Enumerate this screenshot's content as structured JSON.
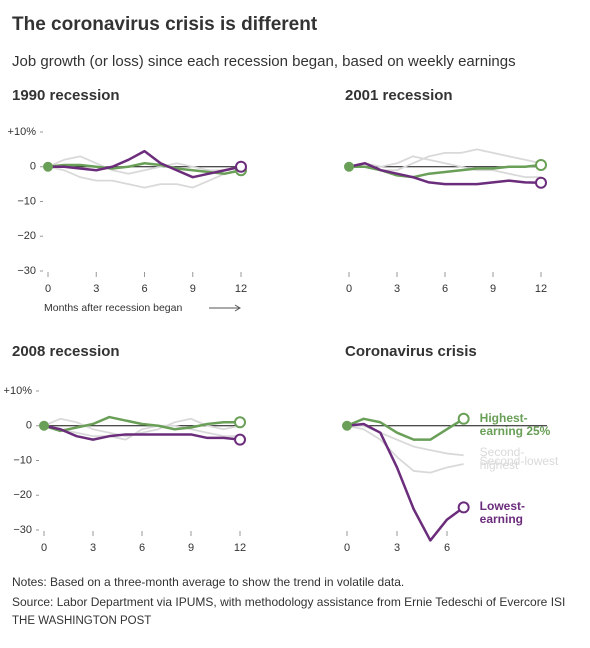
{
  "title": "The coronavirus crisis is different",
  "subtitle": "Job growth (or loss) since each recession began, based on weekly earnings",
  "notes": [
    "Notes: Based on a three-month average to show the trend in volatile data.",
    "Source: Labor Department via IPUMS, with methodology assistance from Ernie Tedeschi of Evercore ISI",
    "THE WASHINGTON POST"
  ],
  "chart_data": [
    {
      "type": "line",
      "title": "1990 recession",
      "xlabel": "Months after recession began",
      "x": [
        0,
        1,
        2,
        3,
        4,
        5,
        6,
        7,
        8,
        9,
        10,
        11,
        12
      ],
      "xlim": [
        0,
        12
      ],
      "xticks": [
        0,
        3,
        6,
        9,
        12
      ],
      "ylim": [
        -30,
        10
      ],
      "yticks": [
        {
          "value": 10,
          "label": "+10%"
        },
        0,
        {
          "value": -10,
          "label": "−10"
        },
        {
          "value": -20,
          "label": "−20"
        },
        {
          "value": -30,
          "label": "−30"
        }
      ],
      "series": [
        {
          "color": "#6a9f58",
          "values": [
            0,
            0.5,
            0.5,
            0,
            -0.5,
            0,
            1,
            0.5,
            -0.5,
            -1,
            -1.5,
            -2,
            -1
          ]
        },
        {
          "color": "#d9d9d9",
          "values": [
            0,
            2,
            3,
            1,
            -1,
            -2,
            -1,
            0,
            1,
            0,
            -1,
            -1,
            0
          ]
        },
        {
          "color": "#d9d9d9",
          "values": [
            0,
            -1,
            -3,
            -4,
            -4,
            -5,
            -6,
            -5,
            -5,
            -6,
            -4,
            -2,
            -1
          ]
        },
        {
          "color": "#6b2d7b",
          "values": [
            0,
            0,
            -0.5,
            -1,
            0,
            2,
            4.5,
            1,
            -1,
            -3,
            -2,
            -1,
            0
          ]
        }
      ]
    },
    {
      "type": "line",
      "title": "2001 recession",
      "x": [
        0,
        1,
        2,
        3,
        4,
        5,
        6,
        7,
        8,
        9,
        10,
        11,
        12
      ],
      "xlim": [
        0,
        12
      ],
      "xticks": [
        0,
        3,
        6,
        9,
        12
      ],
      "ylim": [
        -30,
        10
      ],
      "series": [
        {
          "color": "#6a9f58",
          "values": [
            0,
            0,
            -1,
            -2.5,
            -3,
            -2,
            -1.5,
            -1,
            -0.5,
            -0.5,
            0,
            0,
            0.5
          ]
        },
        {
          "color": "#d9d9d9",
          "values": [
            0,
            0,
            -1,
            -1,
            1,
            3,
            4,
            4,
            5,
            4,
            3,
            2,
            1
          ]
        },
        {
          "color": "#d9d9d9",
          "values": [
            0,
            1,
            0,
            1,
            3,
            2,
            1,
            0,
            -1,
            -1,
            -2,
            -3,
            -3
          ]
        },
        {
          "color": "#6b2d7b",
          "values": [
            0,
            1,
            -1,
            -2,
            -3,
            -4.5,
            -5,
            -5,
            -5,
            -4.5,
            -4,
            -4.5,
            -4.6
          ]
        }
      ]
    },
    {
      "type": "line",
      "title": "2008 recession",
      "x": [
        0,
        1,
        2,
        3,
        4,
        5,
        6,
        7,
        8,
        9,
        10,
        11,
        12
      ],
      "xlim": [
        0,
        12
      ],
      "xticks": [
        0,
        3,
        6,
        9,
        12
      ],
      "ylim": [
        -30,
        10
      ],
      "yticks": [
        {
          "value": 10,
          "label": "+10%"
        },
        0,
        {
          "value": -10,
          "label": "−10"
        },
        {
          "value": -20,
          "label": "−20"
        },
        {
          "value": -30,
          "label": "−30"
        }
      ],
      "series": [
        {
          "color": "#6a9f58",
          "values": [
            0,
            -1.5,
            -0.5,
            0.5,
            2.5,
            1.5,
            0.5,
            0,
            -1,
            -0.5,
            0.5,
            1,
            1
          ]
        },
        {
          "color": "#d9d9d9",
          "values": [
            0,
            2,
            1,
            -1,
            -2,
            -3,
            -2,
            -1,
            1,
            2,
            0,
            -1,
            0
          ]
        },
        {
          "color": "#d9d9d9",
          "values": [
            0,
            -1,
            -2,
            -3,
            -3,
            -4,
            -1,
            0,
            0,
            -1,
            -2,
            -3,
            -3
          ]
        },
        {
          "color": "#6b2d7b",
          "values": [
            0,
            -1,
            -3,
            -4,
            -3,
            -2.5,
            -2.5,
            -2.5,
            -2.5,
            -2.5,
            -3.5,
            -3.5,
            -4
          ]
        }
      ]
    },
    {
      "type": "line",
      "title": "Coronavirus crisis",
      "x": [
        0,
        1,
        2,
        3,
        4,
        5,
        6,
        7
      ],
      "xlim": [
        0,
        12
      ],
      "xticks": [
        0,
        3,
        6
      ],
      "ylim": [
        -30,
        10
      ],
      "series": [
        {
          "name": "Highest-earning 25%",
          "color": "#6a9f58",
          "values": [
            0,
            2,
            1,
            -2,
            -4,
            -4,
            -1,
            2
          ]
        },
        {
          "name": "Second-highest",
          "color": "#d9d9d9",
          "values": [
            0,
            0,
            -2,
            -4,
            -6,
            -7,
            -8,
            -8.5
          ]
        },
        {
          "name": "Second-lowest",
          "color": "#d9d9d9",
          "values": [
            0,
            -1,
            -4,
            -9,
            -13,
            -13.5,
            -12,
            -11
          ]
        },
        {
          "name": "Lowest-earning",
          "color": "#6b2d7b",
          "values": [
            0,
            0.5,
            -2,
            -12,
            -24,
            -33,
            -27,
            -23.5
          ]
        }
      ]
    }
  ]
}
